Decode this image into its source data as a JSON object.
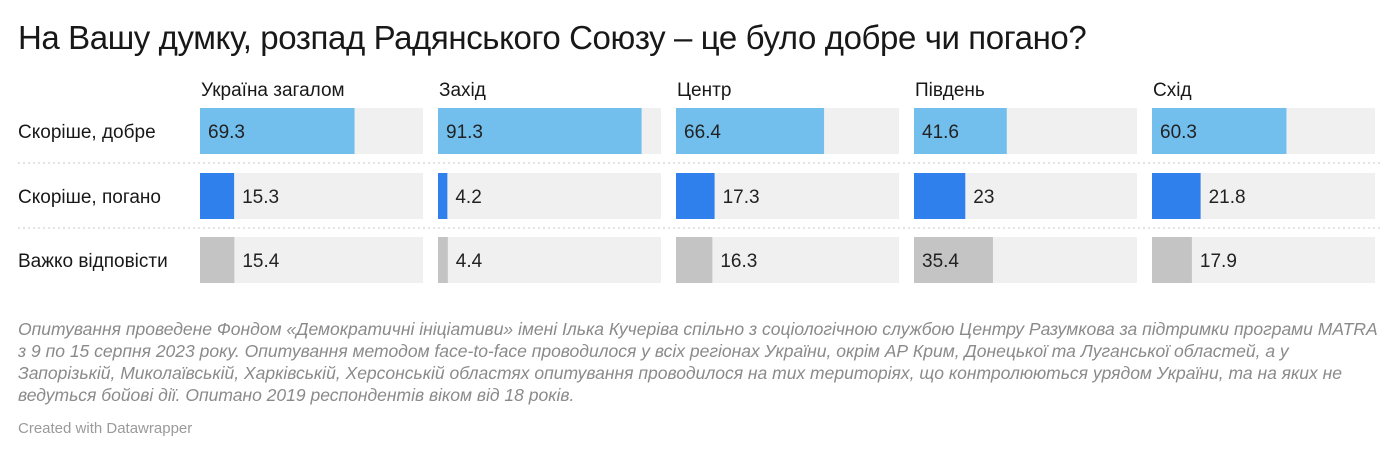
{
  "chart_data": {
    "type": "bar",
    "title": "На Вашу думку, розпад Радянського Союзу – це було добре чи погано?",
    "panels": [
      "Україна загалом",
      "Захід",
      "Центр",
      "Південь",
      "Схід"
    ],
    "categories": [
      "Скоріше, добре",
      "Скоріше, погано",
      "Важко відповісти"
    ],
    "values": [
      [
        69.3,
        15.3,
        15.4
      ],
      [
        91.3,
        4.2,
        4.4
      ],
      [
        66.4,
        17.3,
        16.3
      ],
      [
        41.6,
        23,
        35.4
      ],
      [
        60.3,
        21.8,
        17.9
      ]
    ],
    "value_labels": [
      [
        "69.3",
        "15.3",
        "15.4"
      ],
      [
        "91.3",
        "4.2",
        "4.4"
      ],
      [
        "66.4",
        "17.3",
        "16.3"
      ],
      [
        "41.6",
        "23",
        "35.4"
      ],
      [
        "60.3",
        "21.8",
        "17.9"
      ]
    ],
    "xlim": [
      0,
      100
    ],
    "colors": {
      "Скоріше, добре": "#72bfee",
      "Скоріше, погано": "#2f80ed",
      "Важко відповісти": "#c4c4c4",
      "track": "#f0f0f0"
    }
  },
  "notes": "Опитування проведене Фондом «Демократичні ініціативи» імені Ілька Кучеріва спільно з соціологічною службою Центру Разумкова за підтримки програми MATRA  з 9 по 15 серпня 2023 року. Опитування методом face-to-face проводилося у всіх регіонах України, окрім АР Крим, Донецької та Луганської областей, а у Запорізькій, Миколаївській, Харківській, Херсонській областях опитування проводилося на тих територіях, що контролюються урядом України, та на яких не ведуться бойові дії. Опитано 2019 респондентів віком від 18 років.",
  "credit": "Created with Datawrapper"
}
